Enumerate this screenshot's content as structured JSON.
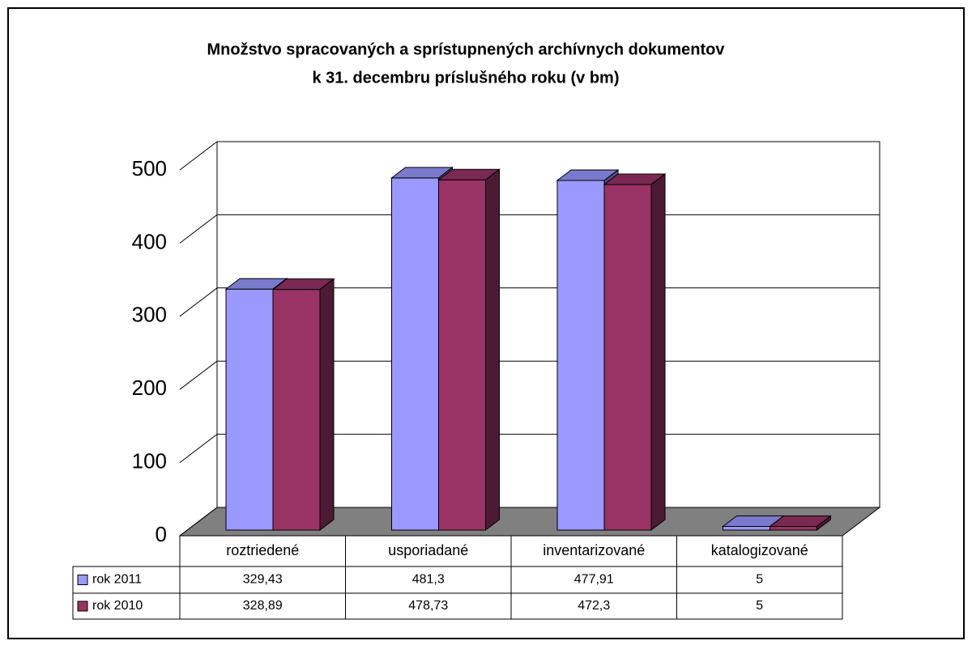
{
  "chart_data": {
    "type": "bar3d",
    "title": [
      "Množstvo spracovaných a sprístupnených archívnych dokumentov",
      "k 31. decembru príslušného roku (v bm)"
    ],
    "categories": [
      "roztriedené",
      "usporiadané",
      "inventarizované",
      "katalogizované"
    ],
    "series": [
      {
        "name": "rok 2011",
        "color": "#9999ff",
        "values": [
          329.43,
          481.3,
          477.91,
          5
        ],
        "value_labels": [
          "329,43",
          "481,3",
          "477,91",
          "5"
        ]
      },
      {
        "name": "rok 2010",
        "color": "#993366",
        "values": [
          328.89,
          478.73,
          472.3,
          5
        ],
        "value_labels": [
          "328,89",
          "478,73",
          "472,3",
          "5"
        ]
      }
    ],
    "ylim": [
      0,
      500
    ],
    "yticks": [
      0,
      100,
      200,
      300,
      400,
      500
    ],
    "grid": true
  }
}
